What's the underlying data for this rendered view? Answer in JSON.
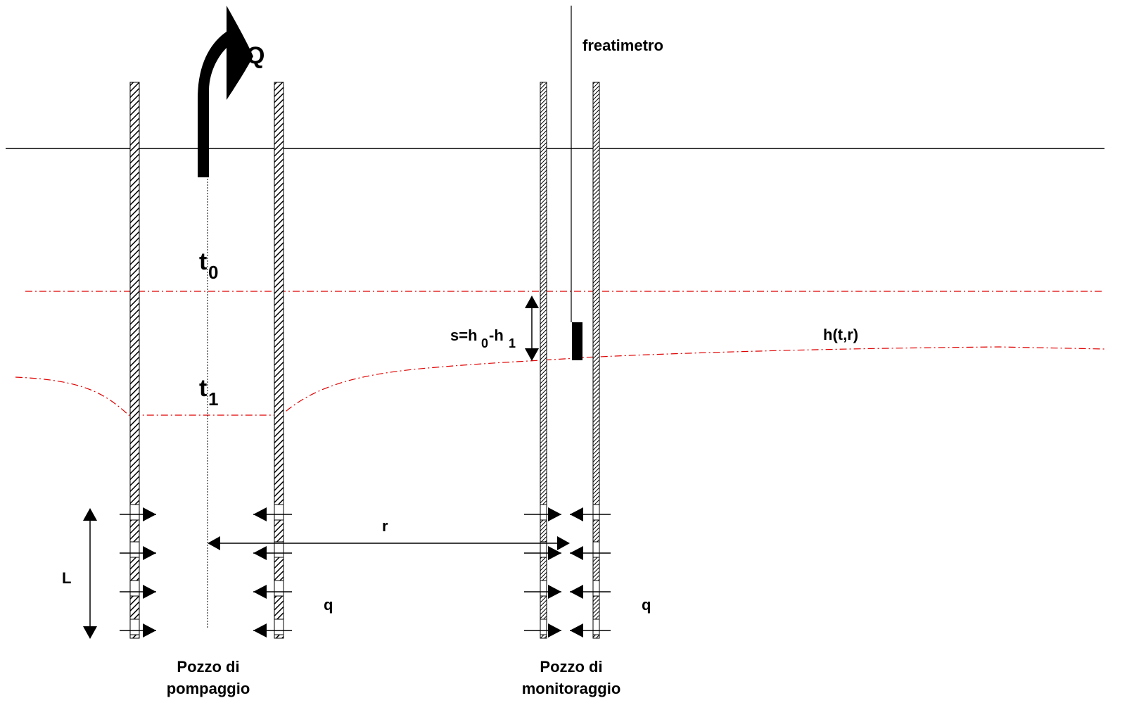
{
  "labels": {
    "discharge": "Q",
    "piezometer": "freatimetro",
    "time_initial": "t",
    "time_initial_sub": "0",
    "time_later": "t",
    "time_later_sub": "1",
    "drawdown_prefix": "s=h",
    "drawdown_sub0": "0",
    "drawdown_mid": "-h",
    "drawdown_sub1": "1",
    "head_function": "h(t,r)",
    "distance": "r",
    "screen_length": "L",
    "inflow_left": "q",
    "inflow_right": "q"
  },
  "captions": {
    "pumping_well_line1": "Pozzo di",
    "pumping_well_line2": "pompaggio",
    "monitoring_well_line1": "Pozzo di",
    "monitoring_well_line2": "monitoraggio"
  },
  "colors": {
    "line": "#000000",
    "water_level": "#e00000",
    "background": "#ffffff"
  }
}
